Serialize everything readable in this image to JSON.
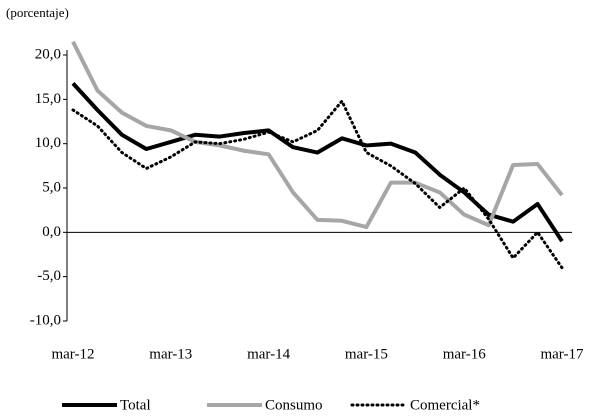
{
  "chart_data": {
    "type": "line",
    "ylabel": "(porcentaje)",
    "categories": [
      "mar-12",
      null,
      null,
      null,
      "mar-13",
      null,
      null,
      null,
      "mar-14",
      null,
      null,
      null,
      "mar-15",
      null,
      null,
      null,
      "mar-16",
      null,
      null,
      null,
      "mar-17"
    ],
    "series": [
      {
        "name": "Total",
        "color": "#000000",
        "style": "solid",
        "values": [
          16.8,
          13.8,
          11.0,
          9.4,
          10.2,
          11.0,
          10.8,
          11.2,
          11.5,
          9.6,
          9.0,
          10.6,
          9.8,
          10.0,
          9.0,
          6.5,
          4.5,
          2.0,
          1.2,
          3.2,
          -1.0
        ]
      },
      {
        "name": "Consumo",
        "color": "#a6a6a6",
        "style": "solid",
        "values": [
          21.5,
          16.0,
          13.5,
          12.0,
          11.5,
          10.2,
          9.8,
          9.2,
          8.8,
          4.5,
          1.4,
          1.3,
          0.6,
          5.6,
          5.6,
          4.5,
          2.0,
          0.8,
          7.6,
          7.7,
          4.2
        ]
      },
      {
        "name": "Comercial*",
        "color": "#000000",
        "style": "dotted",
        "values": [
          13.8,
          12.0,
          9.0,
          7.2,
          8.5,
          10.2,
          10.0,
          10.5,
          11.3,
          10.2,
          11.5,
          14.8,
          9.0,
          7.5,
          5.5,
          2.8,
          5.0,
          1.5,
          -2.9,
          0.0,
          -4.0
        ]
      }
    ],
    "ylim": [
      -10,
      20
    ],
    "yticks": [
      {
        "value": -10,
        "label": "-10,0"
      },
      {
        "value": -5,
        "label": "-5,0"
      },
      {
        "value": 0,
        "label": "0,0"
      },
      {
        "value": 5,
        "label": "5,0"
      },
      {
        "value": 10,
        "label": "10,0"
      },
      {
        "value": 15,
        "label": "15,0"
      },
      {
        "value": 20,
        "label": "20,0"
      }
    ],
    "legend": "bottom"
  }
}
